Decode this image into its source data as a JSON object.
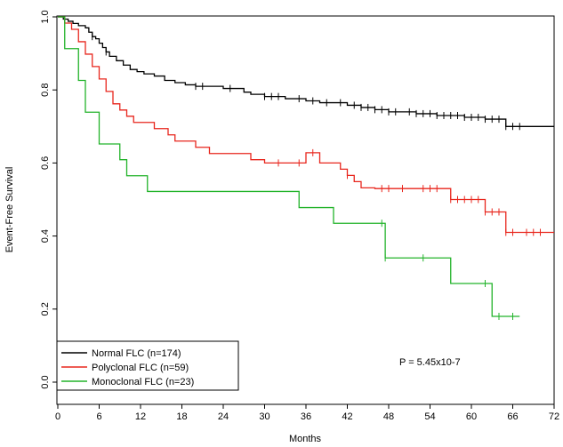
{
  "chart_data": {
    "type": "line",
    "subtype": "kaplan-meier step",
    "xlabel": "Months",
    "ylabel": "Event-Free Survival",
    "xlim": [
      0,
      72
    ],
    "ylim": [
      0,
      1
    ],
    "xticks": [
      "0",
      "6",
      "12",
      "18",
      "24",
      "30",
      "36",
      "42",
      "48",
      "54",
      "60",
      "66",
      "72"
    ],
    "yticks": [
      "0.0",
      "0.2",
      "0.4",
      "0.6",
      "0.8",
      "1.0"
    ],
    "annotation": "P   = 5.45x10-7",
    "legend_position": "bottom-left",
    "series": [
      {
        "name": "Normal FLC (n=174)",
        "color": "#000000",
        "steps": [
          [
            0,
            1.0
          ],
          [
            0.8,
            0.994
          ],
          [
            1.5,
            0.988
          ],
          [
            2.2,
            0.982
          ],
          [
            3,
            0.976
          ],
          [
            4,
            0.97
          ],
          [
            4.5,
            0.958
          ],
          [
            5,
            0.946
          ],
          [
            5.5,
            0.94
          ],
          [
            6,
            0.928
          ],
          [
            6.5,
            0.916
          ],
          [
            7,
            0.904
          ],
          [
            7.5,
            0.892
          ],
          [
            8.5,
            0.88
          ],
          [
            9.5,
            0.868
          ],
          [
            10.5,
            0.856
          ],
          [
            11.5,
            0.85
          ],
          [
            12.5,
            0.844
          ],
          [
            14,
            0.838
          ],
          [
            15.5,
            0.826
          ],
          [
            17,
            0.82
          ],
          [
            18.5,
            0.814
          ],
          [
            20,
            0.81
          ],
          [
            24,
            0.804
          ],
          [
            27,
            0.794
          ],
          [
            28,
            0.788
          ],
          [
            30,
            0.782
          ],
          [
            33,
            0.776
          ],
          [
            36,
            0.77
          ],
          [
            38,
            0.765
          ],
          [
            42,
            0.758
          ],
          [
            44,
            0.752
          ],
          [
            46,
            0.746
          ],
          [
            48,
            0.74
          ],
          [
            52,
            0.735
          ],
          [
            55,
            0.73
          ],
          [
            59,
            0.725
          ],
          [
            62,
            0.72
          ],
          [
            65,
            0.7
          ],
          [
            72,
            0.7
          ]
        ],
        "censor_x": [
          5,
          7,
          20,
          21,
          25,
          30,
          31,
          32,
          35,
          37,
          39,
          41,
          43,
          44,
          45,
          46,
          47,
          48,
          49,
          51,
          52,
          53,
          54,
          55,
          56,
          57,
          58,
          59,
          60,
          61,
          62,
          63,
          64,
          65,
          66,
          67
        ]
      },
      {
        "name": "Polyclonal FLC (n=59)",
        "color": "#e8261d",
        "steps": [
          [
            0,
            1.0
          ],
          [
            1,
            0.983
          ],
          [
            2,
            0.966
          ],
          [
            3,
            0.932
          ],
          [
            4,
            0.898
          ],
          [
            5,
            0.864
          ],
          [
            6,
            0.83
          ],
          [
            7,
            0.796
          ],
          [
            8,
            0.762
          ],
          [
            9,
            0.745
          ],
          [
            10,
            0.728
          ],
          [
            11,
            0.711
          ],
          [
            14,
            0.694
          ],
          [
            16,
            0.677
          ],
          [
            17,
            0.66
          ],
          [
            20,
            0.643
          ],
          [
            22,
            0.626
          ],
          [
            28,
            0.609
          ],
          [
            30,
            0.6
          ],
          [
            36,
            0.628
          ],
          [
            38,
            0.6
          ],
          [
            41,
            0.583
          ],
          [
            42,
            0.566
          ],
          [
            43,
            0.549
          ],
          [
            44,
            0.532
          ],
          [
            46,
            0.53
          ],
          [
            57,
            0.5
          ],
          [
            62,
            0.466
          ],
          [
            65,
            0.41
          ],
          [
            72,
            0.41
          ]
        ],
        "censor_x": [
          32,
          35,
          37,
          42,
          47,
          48,
          50,
          53,
          54,
          55,
          57,
          58,
          59,
          60,
          61,
          62,
          63,
          64,
          65,
          66,
          68,
          69,
          70
        ]
      },
      {
        "name": "Monoclonal FLC (n=23)",
        "color": "#22b32a",
        "steps": [
          [
            0,
            1.0
          ],
          [
            1,
            0.913
          ],
          [
            3,
            0.826
          ],
          [
            4,
            0.739
          ],
          [
            6,
            0.652
          ],
          [
            9,
            0.609
          ],
          [
            10,
            0.565
          ],
          [
            13,
            0.522
          ],
          [
            35,
            0.478
          ],
          [
            40,
            0.435
          ],
          [
            47.5,
            0.34
          ],
          [
            57,
            0.27
          ],
          [
            63,
            0.18
          ],
          [
            67,
            0.18
          ]
        ],
        "censor_x": [
          47,
          47.5,
          53,
          62,
          64,
          66
        ]
      }
    ]
  }
}
